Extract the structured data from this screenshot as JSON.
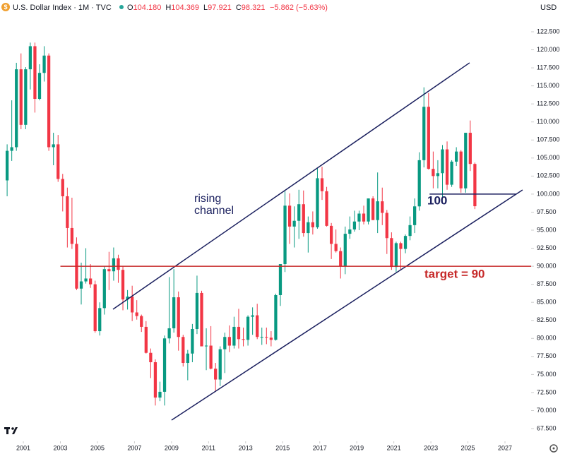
{
  "header": {
    "title": "U.S. Dollar Index · 1M · TVC",
    "ohlc": [
      {
        "key": "O",
        "value": "104.180"
      },
      {
        "key": "H",
        "value": "104.369"
      },
      {
        "key": "L",
        "value": "97.921"
      },
      {
        "key": "C",
        "value": "98.321"
      }
    ],
    "change": "−5.862 (−5.63%)",
    "currency": "USD"
  },
  "chart_data": {
    "type": "candlestick",
    "x": [
      2000.125,
      2000.375,
      2000.625,
      2000.875,
      2001.125,
      2001.375,
      2001.625,
      2001.875,
      2002.125,
      2002.375,
      2002.625,
      2002.875,
      2003.125,
      2003.375,
      2003.625,
      2003.875,
      2004.125,
      2004.375,
      2004.625,
      2004.875,
      2005.125,
      2005.375,
      2005.625,
      2005.875,
      2006.125,
      2006.375,
      2006.625,
      2006.875,
      2007.125,
      2007.375,
      2007.625,
      2007.875,
      2008.125,
      2008.375,
      2008.625,
      2008.875,
      2009.125,
      2009.375,
      2009.625,
      2009.875,
      2010.125,
      2010.375,
      2010.625,
      2010.875,
      2011.125,
      2011.375,
      2011.625,
      2011.875,
      2012.125,
      2012.375,
      2012.625,
      2012.875,
      2013.125,
      2013.375,
      2013.625,
      2013.875,
      2014.125,
      2014.375,
      2014.625,
      2014.875,
      2015.125,
      2015.375,
      2015.625,
      2015.875,
      2016.125,
      2016.375,
      2016.625,
      2016.875,
      2017.125,
      2017.375,
      2017.625,
      2017.875,
      2018.125,
      2018.375,
      2018.625,
      2018.875,
      2019.125,
      2019.375,
      2019.625,
      2019.875,
      2020.125,
      2020.375,
      2020.625,
      2020.875,
      2021.125,
      2021.375,
      2021.625,
      2021.875,
      2022.125,
      2022.375,
      2022.625,
      2022.875,
      2023.125,
      2023.375,
      2023.625,
      2023.875,
      2024.125,
      2024.375,
      2024.625,
      2024.875,
      2025.125,
      2025.375
    ],
    "open": [
      101.9,
      106.0,
      106.5,
      117.3,
      109.6,
      117.3,
      120.5,
      113.2,
      116.8,
      119.2,
      106.5,
      106.9,
      102.1,
      99.7,
      95.3,
      93.1,
      86.9,
      87.9,
      88.3,
      87.5,
      81.0,
      84.2,
      89.6,
      89.3,
      91.1,
      89.5,
      85.4,
      85.8,
      83.6,
      83.1,
      81.6,
      78.0,
      76.7,
      71.8,
      72.6,
      80.0,
      81.4,
      85.7,
      80.2,
      76.6,
      77.9,
      81.3,
      86.3,
      78.9,
      79.0,
      75.8,
      74.3,
      78.5,
      80.2,
      79.0,
      81.6,
      79.9,
      79.8,
      83.0,
      83.2,
      80.2,
      80.2,
      80.1,
      79.8,
      86.0,
      90.3,
      98.4,
      95.5,
      96.3,
      98.6,
      94.6,
      96.1,
      95.4,
      102.2,
      100.4,
      95.6,
      93.1,
      92.1,
      90.0,
      94.5,
      95.1,
      96.2,
      97.3,
      96.2,
      99.4,
      96.4,
      99.0,
      97.4,
      93.9,
      89.9,
      93.2,
      92.4,
      94.2,
      95.7,
      98.3,
      104.7,
      112.1,
      103.5,
      102.5,
      102.9,
      106.2,
      101.3,
      104.5,
      105.9,
      100.8,
      108.5,
      104.18
    ],
    "high": [
      106.9,
      113.0,
      118.2,
      119.5,
      117.6,
      121.0,
      121.0,
      118.0,
      120.5,
      119.5,
      108.5,
      108.2,
      102.8,
      100.9,
      99.5,
      94.0,
      90.5,
      92.5,
      90.3,
      88.0,
      85.0,
      90.0,
      92.0,
      92.6,
      91.6,
      90.0,
      86.7,
      87.3,
      85.3,
      83.3,
      82.4,
      78.6,
      77.1,
      74.0,
      80.4,
      88.5,
      89.6,
      86.5,
      80.5,
      78.4,
      82.0,
      88.7,
      86.6,
      81.4,
      81.7,
      76.6,
      78.9,
      80.8,
      81.8,
      83.0,
      84.1,
      81.5,
      83.2,
      84.3,
      84.8,
      81.5,
      81.5,
      81.0,
      86.2,
      90.2,
      100.4,
      100.1,
      98.3,
      100.6,
      100.5,
      96.9,
      97.6,
      103.6,
      103.8,
      101.0,
      96.0,
      95.1,
      92.6,
      95.5,
      96.9,
      97.7,
      97.7,
      98.4,
      99.4,
      99.7,
      103.0,
      100.9,
      97.8,
      94.7,
      93.4,
      93.4,
      94.4,
      96.9,
      99.4,
      105.8,
      114.8,
      114.0,
      105.9,
      104.7,
      106.8,
      107.3,
      104.7,
      106.5,
      106.1,
      108.5,
      110.2,
      104.369
    ],
    "low": [
      99.7,
      104.6,
      106.0,
      109.0,
      109.0,
      114.5,
      111.3,
      113.0,
      115.6,
      106.0,
      104.0,
      101.7,
      97.6,
      92.6,
      92.4,
      86.7,
      84.7,
      87.6,
      87.0,
      80.8,
      80.4,
      83.3,
      86.7,
      88.0,
      87.7,
      83.9,
      84.0,
      82.4,
      82.6,
      80.9,
      77.9,
      74.5,
      70.7,
      71.3,
      70.7,
      79.3,
      80.8,
      78.3,
      76.1,
      74.2,
      76.7,
      80.6,
      78.9,
      75.6,
      75.7,
      72.7,
      73.4,
      75.2,
      78.1,
      78.6,
      78.6,
      78.9,
      79.0,
      80.5,
      79.9,
      79.1,
      79.2,
      78.9,
      79.7,
      84.5,
      89.2,
      93.1,
      92.6,
      93.8,
      94.1,
      91.9,
      94.4,
      95.2,
      99.2,
      95.5,
      91.0,
      91.9,
      88.3,
      88.9,
      93.8,
      94.8,
      95.0,
      95.8,
      95.8,
      96.4,
      94.6,
      95.7,
      91.7,
      89.5,
      89.2,
      89.5,
      91.8,
      93.6,
      94.6,
      97.7,
      103.7,
      103.4,
      100.8,
      100.8,
      99.6,
      100.6,
      101.0,
      103.9,
      100.2,
      100.2,
      103.2,
      97.921
    ],
    "close": [
      106.0,
      106.5,
      117.3,
      109.6,
      117.3,
      120.5,
      113.2,
      116.8,
      119.2,
      106.5,
      106.9,
      102.1,
      99.7,
      95.3,
      93.1,
      86.9,
      87.9,
      88.3,
      87.5,
      81.0,
      84.2,
      89.6,
      89.3,
      91.1,
      89.5,
      85.4,
      85.8,
      83.6,
      83.1,
      81.6,
      78.0,
      76.7,
      71.8,
      72.6,
      80.0,
      81.4,
      85.7,
      80.2,
      76.6,
      77.9,
      81.3,
      86.3,
      78.9,
      79.0,
      75.8,
      74.3,
      78.5,
      80.2,
      79.0,
      81.6,
      79.9,
      79.8,
      83.0,
      83.2,
      80.2,
      80.2,
      80.1,
      79.8,
      86.0,
      90.3,
      98.4,
      95.5,
      96.3,
      98.6,
      94.6,
      96.1,
      95.4,
      102.2,
      100.4,
      95.6,
      93.1,
      92.1,
      90.0,
      94.5,
      95.1,
      96.2,
      97.3,
      96.2,
      99.4,
      96.4,
      99.0,
      97.4,
      93.9,
      89.9,
      93.2,
      92.4,
      94.2,
      95.7,
      98.3,
      104.7,
      112.1,
      103.5,
      102.5,
      102.9,
      106.2,
      101.3,
      104.5,
      105.9,
      100.8,
      108.5,
      104.18,
      98.321
    ],
    "up_color": "#089981",
    "down_color": "#f23645",
    "xlim": [
      1999.74,
      2028.41
    ],
    "ylim": [
      65.74,
      124.75
    ],
    "xticks": [
      2001,
      2003,
      2005,
      2007,
      2009,
      2011,
      2013,
      2015,
      2017,
      2019,
      2021,
      2023,
      2025,
      2027
    ],
    "yticks": [
      {
        "value": 67.5,
        "label": "67.500"
      },
      {
        "value": 70,
        "label": "70.000"
      },
      {
        "value": 72.5,
        "label": "72.500"
      },
      {
        "value": 75,
        "label": "75.000"
      },
      {
        "value": 77.5,
        "label": "77.500"
      },
      {
        "value": 80,
        "label": "80.000"
      },
      {
        "value": 82.5,
        "label": "82.500"
      },
      {
        "value": 85,
        "label": "85.000"
      },
      {
        "value": 87.5,
        "label": "87.500"
      },
      {
        "value": 90,
        "label": "90.000"
      },
      {
        "value": 92.5,
        "label": "92.500"
      },
      {
        "value": 95,
        "label": "95.000"
      },
      {
        "value": 97.5,
        "label": "97.500"
      },
      {
        "value": 100,
        "label": "100.000"
      },
      {
        "value": 102.5,
        "label": "102.500"
      },
      {
        "value": 105,
        "label": "105.000"
      },
      {
        "value": 107.5,
        "label": "107.500"
      },
      {
        "value": 110,
        "label": "110.000"
      },
      {
        "value": 112.5,
        "label": "112.500"
      },
      {
        "value": 115,
        "label": "115.000"
      },
      {
        "value": 117.5,
        "label": "117.500"
      },
      {
        "value": 120,
        "label": "120.000"
      },
      {
        "value": 122.5,
        "label": "122.500"
      }
    ],
    "lines": [
      {
        "x": [
          2005.84,
          2025.09
        ],
        "y": [
          84.04,
          118.2
        ],
        "color": "#1a1f5e"
      },
      {
        "x": [
          2009.0,
          2027.95
        ],
        "y": [
          68.67,
          100.58
        ],
        "color": "#1a1f5e"
      },
      {
        "x": [
          2003.0,
          2028.41
        ],
        "y": [
          90,
          90
        ],
        "color": "#c62828"
      },
      {
        "x": [
          2022.93,
          2027.58
        ],
        "y": [
          100,
          100
        ],
        "color": "#1a1f5e"
      }
    ],
    "annotations": {
      "channel": [
        "rising",
        "channel"
      ],
      "level": "100",
      "target": "target = 90"
    }
  }
}
